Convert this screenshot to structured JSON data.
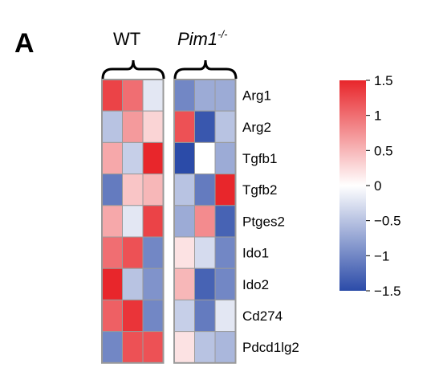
{
  "panel_label": "A",
  "chart_data": {
    "type": "heatmap",
    "groups": [
      {
        "label": "WT",
        "label_italic": false,
        "superscript": "",
        "columns": 3
      },
      {
        "label": "Pim1",
        "label_italic": true,
        "superscript": "-/-",
        "columns": 3
      }
    ],
    "rows": [
      "Arg1",
      "Arg2",
      "Tgfb1",
      "Tgfb2",
      "Ptges2",
      "Ido1",
      "Ido2",
      "Cd274",
      "Pdcd1lg2"
    ],
    "values": [
      [
        1.3,
        1.0,
        -0.2,
        -1.0,
        -0.7,
        -0.7
      ],
      [
        -0.5,
        0.7,
        0.3,
        1.2,
        -1.4,
        -0.5
      ],
      [
        0.6,
        -0.4,
        1.5,
        -1.5,
        0.0,
        -0.7
      ],
      [
        -1.1,
        0.4,
        0.5,
        -0.5,
        -1.1,
        1.5
      ],
      [
        0.6,
        -0.2,
        1.3,
        -0.7,
        0.8,
        -1.3
      ],
      [
        1.0,
        1.2,
        -1.0,
        0.2,
        -0.3,
        -1.0
      ],
      [
        1.5,
        -0.5,
        -0.9,
        0.5,
        -1.3,
        -1.0
      ],
      [
        1.1,
        1.4,
        -1.0,
        -0.4,
        -1.1,
        -0.2
      ],
      [
        -1.0,
        1.2,
        1.2,
        0.2,
        -0.5,
        -0.6
      ]
    ],
    "color_scale": {
      "min": -1.5,
      "max": 1.5,
      "low_color": "#2b4ba8",
      "mid_color": "#ffffff",
      "high_color": "#e8262b",
      "ticks": [
        "1.5",
        "1",
        "0.5",
        "0",
        "−0.5",
        "−1",
        "−1.5"
      ],
      "tick_values": [
        1.5,
        1,
        0.5,
        0,
        -0.5,
        -1,
        -1.5
      ]
    },
    "border_color": "#9a9a9a"
  }
}
